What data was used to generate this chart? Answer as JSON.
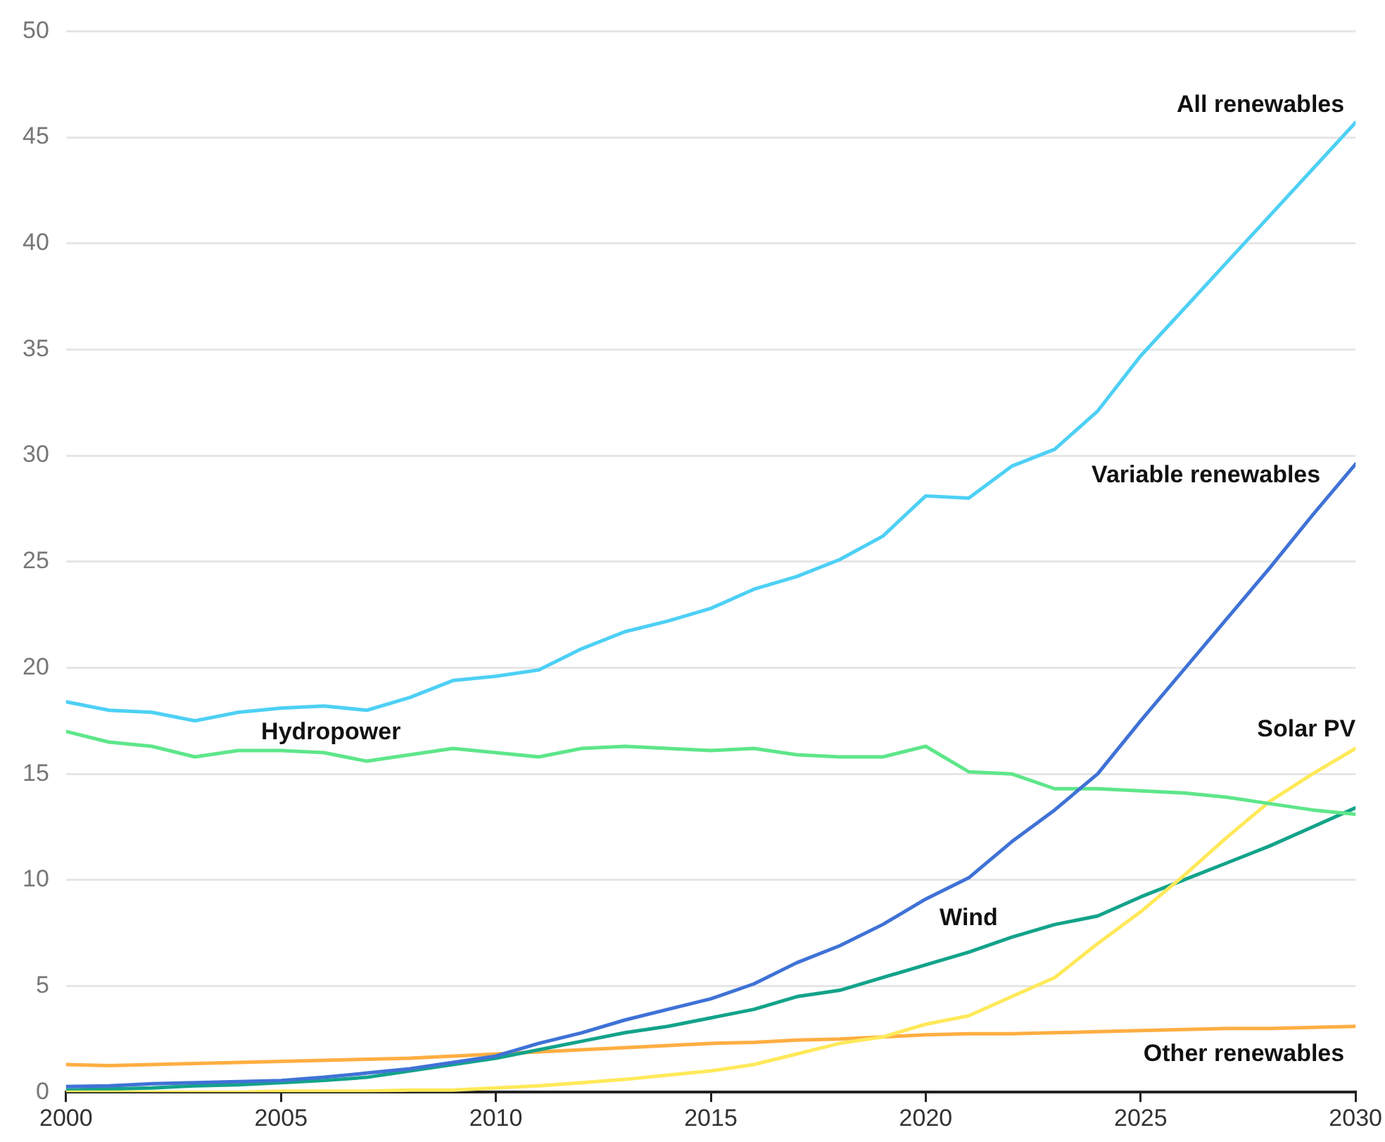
{
  "chart_data": {
    "type": "line",
    "x": [
      2000,
      2001,
      2002,
      2003,
      2004,
      2005,
      2006,
      2007,
      2008,
      2009,
      2010,
      2011,
      2012,
      2013,
      2014,
      2015,
      2016,
      2017,
      2018,
      2019,
      2020,
      2021,
      2022,
      2023,
      2024,
      2025,
      2026,
      2027,
      2028,
      2029,
      2030
    ],
    "xlim": [
      2000,
      2030
    ],
    "xticks": [
      2000,
      2005,
      2010,
      2015,
      2020,
      2025,
      2030
    ],
    "ylim": [
      0,
      50
    ],
    "yticks": [
      0,
      5,
      10,
      15,
      20,
      25,
      30,
      35,
      40,
      45,
      50
    ],
    "grid": "y",
    "legend": false,
    "marker": "none",
    "line_style": "solid",
    "series": [
      {
        "name": "All renewables",
        "color": "#4dd0f5",
        "values": [
          18.4,
          18.0,
          17.9,
          17.5,
          17.9,
          18.1,
          18.2,
          18.0,
          18.6,
          19.4,
          19.6,
          19.9,
          20.9,
          21.7,
          22.2,
          22.8,
          23.7,
          24.3,
          25.1,
          26.2,
          28.1,
          28.0,
          29.5,
          30.3,
          32.1,
          34.7,
          36.9,
          39.1,
          41.3,
          43.5,
          45.7
        ]
      },
      {
        "name": "Variable renewables",
        "color": "#3f72d6",
        "values": [
          0.26,
          0.3,
          0.4,
          0.45,
          0.5,
          0.55,
          0.7,
          0.9,
          1.1,
          1.4,
          1.7,
          2.3,
          2.8,
          3.4,
          3.9,
          4.4,
          5.1,
          6.1,
          6.9,
          7.9,
          9.1,
          10.1,
          11.8,
          13.3,
          15.0,
          17.5,
          19.9,
          22.3,
          24.7,
          27.2,
          29.6
        ]
      },
      {
        "name": "Hydropower",
        "color": "#5ee68a",
        "values": [
          17.0,
          16.5,
          16.3,
          15.8,
          16.1,
          16.1,
          16.0,
          15.6,
          15.9,
          16.2,
          16.0,
          15.8,
          16.2,
          16.3,
          16.2,
          16.1,
          16.2,
          15.9,
          15.8,
          15.8,
          16.3,
          15.1,
          15.0,
          14.3,
          14.3,
          14.2,
          14.1,
          13.9,
          13.6,
          13.3,
          13.1
        ]
      },
      {
        "name": "Solar PV",
        "color": "#ffe95a",
        "values": [
          0.0,
          0.0,
          0.0,
          0.0,
          0.0,
          0.05,
          0.05,
          0.05,
          0.1,
          0.1,
          0.2,
          0.3,
          0.45,
          0.6,
          0.8,
          1.0,
          1.3,
          1.8,
          2.3,
          2.6,
          3.2,
          3.6,
          4.5,
          5.4,
          7.0,
          8.5,
          10.2,
          12.0,
          13.7,
          15.0,
          16.2
        ]
      },
      {
        "name": "Wind",
        "color": "#13a38a",
        "values": [
          0.1,
          0.15,
          0.2,
          0.3,
          0.35,
          0.45,
          0.55,
          0.7,
          1.0,
          1.3,
          1.6,
          2.0,
          2.4,
          2.8,
          3.1,
          3.5,
          3.9,
          4.5,
          4.8,
          5.4,
          6.0,
          6.6,
          7.3,
          7.9,
          8.3,
          9.2,
          10.0,
          10.8,
          11.6,
          12.5,
          13.4
        ]
      },
      {
        "name": "Other renewables",
        "color": "#ffae42",
        "values": [
          1.3,
          1.25,
          1.3,
          1.35,
          1.4,
          1.45,
          1.5,
          1.55,
          1.6,
          1.7,
          1.8,
          1.9,
          2.0,
          2.1,
          2.2,
          2.3,
          2.35,
          2.45,
          2.5,
          2.6,
          2.7,
          2.75,
          2.75,
          2.8,
          2.85,
          2.9,
          2.95,
          3.0,
          3.0,
          3.05,
          3.1
        ]
      }
    ]
  }
}
